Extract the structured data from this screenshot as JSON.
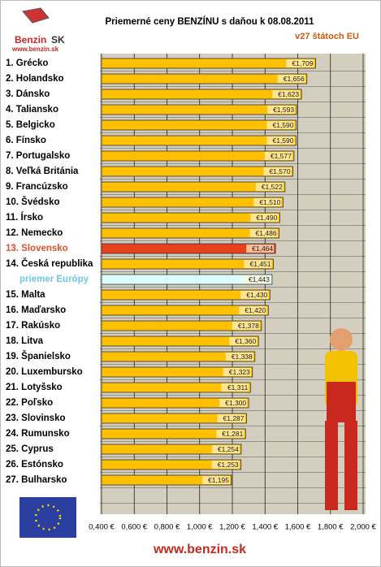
{
  "chart_data": {
    "type": "bar",
    "orientation": "horizontal",
    "title": "Priemerné ceny BENZÍNU s daňou k 08.08.2011",
    "subtitle": "v27 štátoch EU",
    "logo": {
      "brand": "Benzin",
      "country": "SK",
      "url": "www.benzin.sk"
    },
    "footer": "www.benzin.sk",
    "categories": [
      "1. Grécko",
      "2. Holandsko",
      "3. Dánsko",
      "4. Taliansko",
      "5. Belgicko",
      "6. Fínsko",
      "7. Portugalsko",
      "8. Veľká Británia",
      "9. Francúzsko",
      "10. Švédsko",
      "11. Írsko",
      "12. Nemecko",
      "13. Slovensko",
      "14. Česká republika",
      "priemer Európy",
      "15. Malta",
      "16. Maďarsko",
      "17. Rakúsko",
      "18. Litva",
      "19. Španielsko",
      "20. Luxembursko",
      "21. Lotyšsko",
      "22. Poľsko",
      "23. Slovinsko",
      "24. Rumunsko",
      "25. Cyprus",
      "26. Estónsko",
      "27. Bulharsko",
      null
    ],
    "values": [
      1.709,
      1.656,
      1.623,
      1.593,
      1.59,
      1.59,
      1.577,
      1.57,
      1.522,
      1.51,
      1.49,
      1.486,
      1.464,
      1.451,
      1.443,
      1.43,
      1.42,
      1.378,
      1.36,
      1.338,
      1.323,
      1.311,
      1.3,
      1.287,
      1.281,
      1.254,
      1.253,
      1.195,
      null
    ],
    "value_labels": [
      "€1,709",
      "€1,656",
      "€1,623",
      "€1,593",
      "€1,590",
      "€1,590",
      "€1,577",
      "€1,570",
      "€1,522",
      "€1,510",
      "€1,490",
      "€1,486",
      "€1,464",
      "€1,451",
      "€1,443",
      "€1,430",
      "€1,420",
      "€1,378",
      "€1,360",
      "€1,338",
      "€1,323",
      "€1,311",
      "€1,300",
      "€1,287",
      "€1,281",
      "€1,254",
      "€1,253",
      "€1,195",
      null
    ],
    "color": "#FFC000",
    "colors": [
      "#FFC000",
      "#FFC000",
      "#FFC000",
      "#FFC000",
      "#FFC000",
      "#FFC000",
      "#FFC000",
      "#FFC000",
      "#FFC000",
      "#FFC000",
      "#FFC000",
      "#FFC000",
      "#E8401C",
      "#FFC000",
      "#DDFFFF",
      "#FFC000",
      "#FFC000",
      "#FFC000",
      "#FFC000",
      "#FFC000",
      "#FFC000",
      "#FFC000",
      "#FFC000",
      "#FFC000",
      "#FFC000",
      "#FFC000",
      "#FFC000",
      "#FFC000",
      "#FFC000"
    ],
    "label_colors": [
      "#000000",
      "#000000",
      "#000000",
      "#000000",
      "#000000",
      "#000000",
      "#000000",
      "#000000",
      "#000000",
      "#000000",
      "#000000",
      "#000000",
      "#E0502A",
      "#000000",
      "#6EC6E6",
      "#000000",
      "#000000",
      "#000000",
      "#000000",
      "#000000",
      "#000000",
      "#000000",
      "#000000",
      "#000000",
      "#000000",
      "#000000",
      "#000000",
      "#000000",
      "#000000"
    ],
    "xlim": [
      0.4,
      2.0
    ],
    "xticks": [
      {
        "value": 0.4,
        "label": "0,400 €"
      },
      {
        "value": 0.6,
        "label": "0,600 €"
      },
      {
        "value": 0.8,
        "label": "0,800 €"
      },
      {
        "value": 1.0,
        "label": "1,000 €"
      },
      {
        "value": 1.2,
        "label": "1,200 €"
      },
      {
        "value": 1.4,
        "label": "1,400 €"
      },
      {
        "value": 1.6,
        "label": "1,600 €"
      },
      {
        "value": 1.8,
        "label": "1,800 €"
      },
      {
        "value": 2.0,
        "label": "2,000 €"
      }
    ],
    "grid": true
  }
}
